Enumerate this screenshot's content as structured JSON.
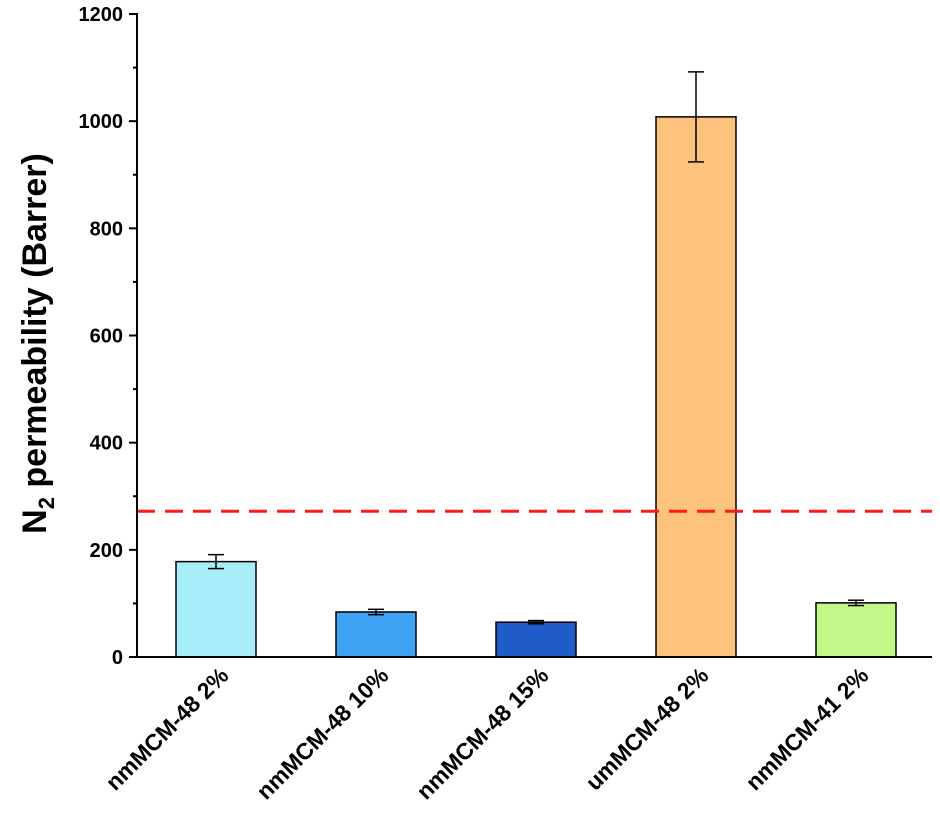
{
  "chart_data": {
    "type": "bar",
    "title": "",
    "xlabel": "",
    "ylabel": {
      "symbol": "N",
      "subscript": "2",
      "rest": " permeability (Barrer)"
    },
    "ylim": [
      0,
      1200
    ],
    "yticks": [
      0,
      200,
      400,
      600,
      800,
      1000,
      1200
    ],
    "grid": false,
    "categories": [
      "nmMCM-48 2%",
      "nmMCM-48 10%",
      "nmMCM-48 15%",
      "umMCM-48 2%",
      "nmMCM-41 2%"
    ],
    "values": [
      178,
      84,
      65,
      1008,
      101
    ],
    "errors": [
      13,
      5,
      3,
      84,
      5
    ],
    "colors": [
      "#a8eefa",
      "#3fa2f5",
      "#1f5bc9",
      "#fdc27b",
      "#c4f78a"
    ],
    "reference_line": {
      "value": 272,
      "style": "dashed",
      "color": "#ff1a1a"
    }
  }
}
